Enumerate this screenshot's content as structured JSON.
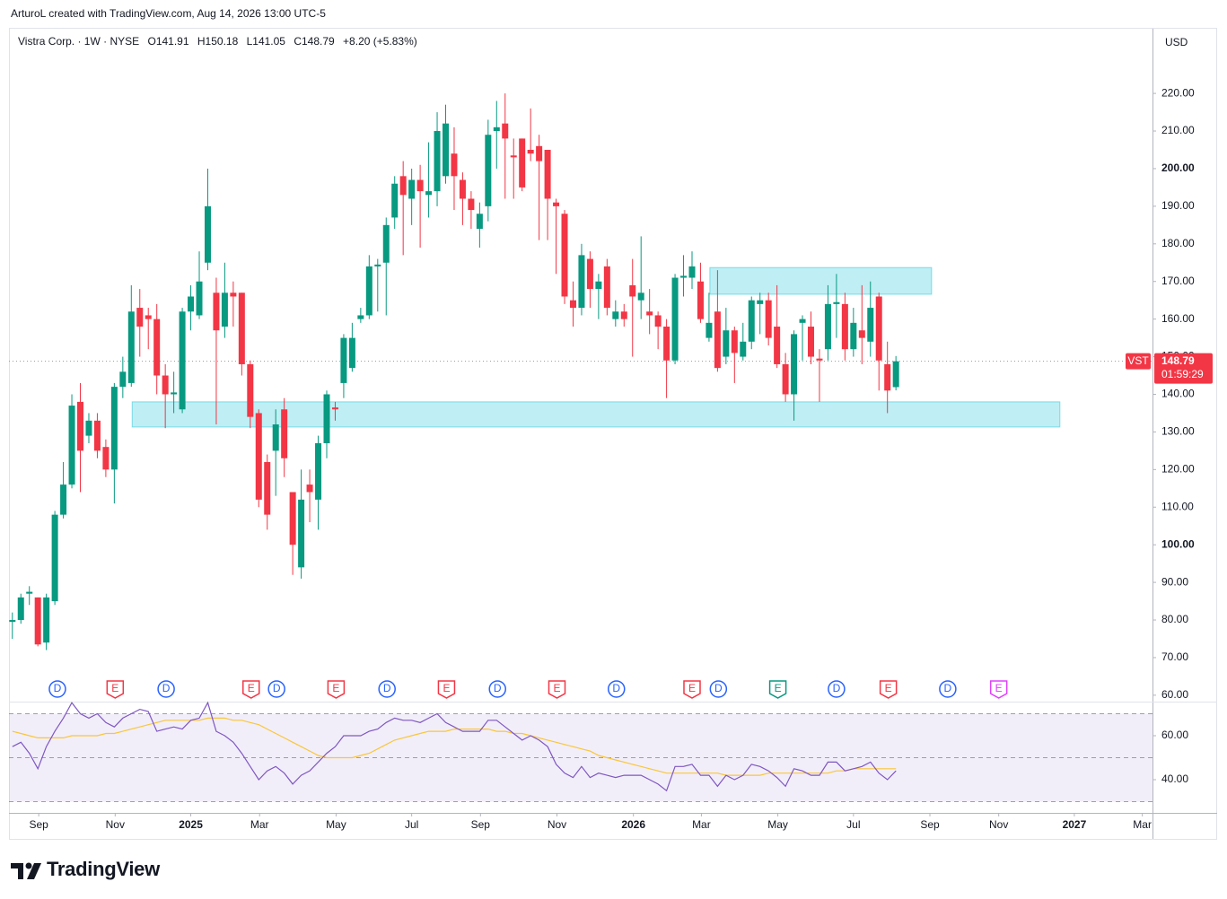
{
  "attribution": "ArturoL created with TradingView.com, Aug 14, 2026 13:00 UTC-5",
  "brand": "TradingView",
  "chart_data": {
    "type": "candlestick",
    "title": "Vistra Corp. · 1W · NYSE",
    "ohlc_legend": [
      "O141.91",
      "H150.18",
      "L141.05",
      "C148.79",
      "+8.20 (+5.83%)"
    ],
    "currency": "USD",
    "categories": [
      null,
      null,
      null,
      null,
      null,
      null,
      null,
      null,
      null,
      null,
      null,
      null,
      null,
      null,
      null,
      null,
      null,
      null,
      null,
      null,
      null,
      null,
      null,
      null,
      null,
      null,
      null,
      null,
      null,
      null,
      null,
      null,
      null,
      null,
      null,
      null,
      null,
      null,
      null,
      null,
      null,
      null,
      null,
      null,
      null,
      null,
      null,
      null,
      null,
      null,
      null,
      null,
      null,
      null,
      null,
      null,
      null,
      null,
      null,
      null,
      null,
      null,
      null,
      null,
      null,
      null,
      null,
      null,
      null,
      null,
      null,
      null,
      null,
      null,
      null,
      null,
      null,
      null,
      null,
      null,
      null,
      null,
      null,
      null,
      null,
      null,
      null,
      null,
      null,
      null,
      null,
      null,
      null,
      null,
      null,
      null,
      null,
      null,
      null,
      null,
      null,
      null,
      null,
      null,
      null
    ],
    "open": [
      79.5,
      80,
      87,
      86,
      74,
      85,
      108,
      116,
      138,
      129,
      133,
      126,
      120,
      142,
      143,
      163,
      161,
      160,
      145,
      140,
      136,
      162,
      161,
      175,
      167,
      158,
      167,
      167,
      148,
      135,
      122,
      125,
      136,
      114,
      94,
      116,
      112,
      127,
      136.5,
      143,
      147,
      160,
      161,
      174,
      175,
      187,
      198,
      192,
      197,
      193,
      194,
      198,
      204,
      197,
      192,
      184,
      190,
      210,
      212,
      203.5,
      208,
      205,
      206,
      205,
      191,
      188,
      165,
      163,
      176,
      168,
      174,
      160,
      162,
      169,
      165,
      162,
      161,
      158,
      149,
      171,
      171,
      170,
      155,
      162,
      150,
      157,
      150,
      154,
      164,
      165,
      158,
      148,
      140,
      159,
      158,
      149.5,
      152,
      164,
      164,
      152,
      157,
      154,
      166,
      148,
      141.91
    ],
    "high": [
      82,
      87,
      89,
      86,
      87,
      109,
      122,
      140,
      143,
      135,
      135,
      128,
      143,
      150,
      169,
      168,
      163,
      164,
      148,
      146,
      163,
      169,
      178,
      200,
      171,
      175,
      170,
      167,
      149,
      136,
      124,
      136,
      139,
      114,
      120,
      120,
      129,
      141,
      138,
      156,
      159,
      163,
      177,
      176,
      187,
      198,
      202,
      200,
      201,
      207,
      215,
      217,
      211,
      199,
      194,
      191,
      213,
      218,
      220,
      208,
      208,
      216,
      209,
      205,
      192,
      189,
      170,
      180,
      178,
      172,
      176,
      165,
      164,
      176,
      182,
      168,
      162,
      160,
      172,
      177,
      178,
      175,
      167,
      173,
      163,
      158,
      159,
      166,
      167,
      167,
      169,
      151,
      157,
      161,
      162,
      152,
      169,
      172,
      167,
      163,
      169,
      170,
      167,
      154,
      150.18
    ],
    "low": [
      75,
      79,
      84,
      73,
      72,
      84,
      107,
      115,
      114,
      127,
      123,
      118,
      111,
      139,
      142,
      150,
      152,
      140,
      131,
      135,
      135,
      157,
      160,
      173,
      132,
      155,
      158,
      145,
      131,
      110,
      104,
      113,
      118,
      92,
      91,
      106,
      104,
      123,
      133,
      139,
      146,
      159,
      160,
      162,
      161,
      184,
      177,
      185,
      179,
      187,
      190,
      196,
      189,
      185,
      184,
      179,
      186,
      200,
      192,
      192,
      194,
      202,
      181,
      181,
      172,
      164,
      158,
      161,
      163,
      160,
      161,
      158,
      158,
      150,
      160,
      156,
      152,
      139,
      148,
      166,
      168,
      159,
      154,
      146,
      148,
      143,
      149,
      152,
      156,
      153,
      147,
      138,
      133,
      149,
      148,
      138,
      149,
      155,
      149,
      150,
      148,
      150,
      141,
      135,
      141.05
    ],
    "close": [
      80,
      86,
      87.5,
      73.5,
      86,
      108,
      116,
      137,
      125,
      133,
      125,
      120,
      142,
      146,
      162,
      158,
      160,
      145,
      140,
      140.5,
      162,
      166,
      170,
      190,
      157,
      167,
      166,
      148,
      134,
      112,
      108,
      132,
      123,
      100,
      112,
      114,
      127,
      140,
      136,
      155,
      155,
      161,
      174,
      174.5,
      185,
      196,
      193,
      197,
      194,
      194,
      210,
      212,
      198,
      192,
      189,
      188,
      209,
      211,
      208,
      203,
      195,
      204,
      202,
      192,
      190,
      166,
      163,
      177,
      168,
      170,
      163,
      162,
      160,
      166,
      167,
      161,
      158,
      149,
      171,
      171.5,
      174,
      160,
      159,
      147,
      157,
      151,
      154,
      165,
      165,
      155,
      148,
      140,
      156,
      160,
      150,
      149,
      164,
      164.5,
      152,
      159,
      155,
      163,
      149,
      141,
      148.79
    ],
    "up_color": "#089981",
    "down_color": "#f23645",
    "xlim": [
      -0.4,
      134.2
    ],
    "xticks": [
      {
        "value": 3.1,
        "label": "Sep"
      },
      {
        "value": 12.1,
        "label": "Nov"
      },
      {
        "value": 21.0,
        "label": "2025"
      },
      {
        "value": 29.1,
        "label": "Mar"
      },
      {
        "value": 38.1,
        "label": "May"
      },
      {
        "value": 47.0,
        "label": "Jul"
      },
      {
        "value": 55.1,
        "label": "Sep"
      },
      {
        "value": 64.1,
        "label": "Nov"
      },
      {
        "value": 73.1,
        "label": "2026"
      },
      {
        "value": 81.1,
        "label": "Mar"
      },
      {
        "value": 90.1,
        "label": "May"
      },
      {
        "value": 99.0,
        "label": "Jul"
      },
      {
        "value": 108.0,
        "label": "Sep"
      },
      {
        "value": 116.1,
        "label": "Nov"
      },
      {
        "value": 125.0,
        "label": "2027"
      },
      {
        "value": 133.0,
        "label": "Mar"
      }
    ],
    "ylim": [
      58.3,
      237.2
    ],
    "yticks": [
      {
        "value": 60,
        "label": "60.00"
      },
      {
        "value": 70,
        "label": "70.00"
      },
      {
        "value": 80,
        "label": "80.00"
      },
      {
        "value": 90,
        "label": "90.00"
      },
      {
        "value": 100,
        "label": "100.00"
      },
      {
        "value": 110,
        "label": "110.00"
      },
      {
        "value": 120,
        "label": "120.00"
      },
      {
        "value": 130,
        "label": "130.00"
      },
      {
        "value": 140,
        "label": "140.00"
      },
      {
        "value": 150,
        "label": "150.00"
      },
      {
        "value": 160,
        "label": "160.00"
      },
      {
        "value": 170,
        "label": "170.00"
      },
      {
        "value": 180,
        "label": "180.00"
      },
      {
        "value": 190,
        "label": "190.00"
      },
      {
        "value": 200,
        "label": "200.00"
      },
      {
        "value": 210,
        "label": "210.00"
      },
      {
        "value": 220,
        "label": "220.00"
      }
    ],
    "symbol": "VST",
    "last_price": {
      "value": 148.79,
      "label": "148.79"
    },
    "countdown": "01:59:29",
    "zone_color": "#00bcd4",
    "zones": [
      {
        "xlim": [
          14.1,
          123.3
        ],
        "ylim": [
          131.3,
          138.0
        ]
      },
      {
        "xlim": [
          82.1,
          108.2
        ],
        "ylim": [
          166.6,
          173.7
        ]
      }
    ],
    "events": [
      {
        "x": 5.3,
        "label": "D",
        "color": "#2962ff"
      },
      {
        "x": 12.1,
        "label": "E",
        "color": "#f23645"
      },
      {
        "x": 18.1,
        "label": "D",
        "color": "#2962ff"
      },
      {
        "x": 28.1,
        "label": "E",
        "color": "#f23645"
      },
      {
        "x": 31.1,
        "label": "D",
        "color": "#2962ff"
      },
      {
        "x": 38.1,
        "label": "E",
        "color": "#f23645"
      },
      {
        "x": 44.1,
        "label": "D",
        "color": "#2962ff"
      },
      {
        "x": 51.1,
        "label": "E",
        "color": "#f23645"
      },
      {
        "x": 57.1,
        "label": "D",
        "color": "#2962ff"
      },
      {
        "x": 64.1,
        "label": "E",
        "color": "#f23645"
      },
      {
        "x": 71.1,
        "label": "D",
        "color": "#2962ff"
      },
      {
        "x": 80.0,
        "label": "E",
        "color": "#f23645"
      },
      {
        "x": 83.1,
        "label": "D",
        "color": "#2962ff"
      },
      {
        "x": 90.1,
        "label": "E",
        "color": "#089981"
      },
      {
        "x": 97.0,
        "label": "D",
        "color": "#2962ff"
      },
      {
        "x": 103.1,
        "label": "E",
        "color": "#f23645"
      },
      {
        "x": 110.1,
        "label": "D",
        "color": "#2962ff"
      },
      {
        "x": 116.1,
        "label": "E",
        "color": "#e040fb"
      }
    ],
    "rsi": {
      "ylim": [
        24.9,
        75.1
      ],
      "yticks": [
        {
          "value": 60,
          "label": "60.00"
        },
        {
          "value": 40,
          "label": "40.00"
        }
      ],
      "bands": [
        70,
        50,
        30
      ],
      "color": "#7e57c2",
      "values": [
        55,
        57,
        52,
        45,
        55,
        62,
        68,
        75,
        70,
        68,
        70,
        66,
        64,
        68,
        70,
        72,
        71,
        62,
        63,
        64,
        63,
        67,
        68,
        75,
        62,
        60,
        57,
        52,
        46,
        40,
        44,
        46,
        43,
        38,
        42,
        44,
        48,
        52,
        55,
        60,
        60,
        60,
        62,
        63,
        66,
        68,
        67,
        67,
        66,
        68,
        70,
        66,
        64,
        62,
        62,
        62,
        67,
        67,
        64,
        61,
        58,
        60,
        58,
        55,
        47,
        43,
        41,
        46,
        41,
        43,
        42,
        41,
        42,
        42,
        42,
        40,
        38,
        35,
        46,
        46,
        47,
        42,
        42,
        37,
        42,
        40,
        42,
        47,
        46,
        44,
        41,
        37,
        45,
        44,
        42,
        42,
        48,
        48,
        44,
        45,
        46,
        48,
        43,
        40,
        44
      ],
      "ma_color": "#f9c63a",
      "ma": [
        62,
        61,
        60,
        59,
        59,
        59,
        59,
        60,
        60,
        60,
        60,
        61,
        61,
        62,
        63,
        64,
        65,
        66,
        67,
        67,
        67,
        67,
        67,
        68,
        68,
        68,
        67,
        67,
        66,
        65,
        63,
        61,
        59,
        57,
        55,
        53,
        51,
        50,
        50,
        50,
        50,
        51,
        52,
        54,
        56,
        58,
        59,
        60,
        61,
        62,
        62,
        62,
        63,
        63,
        63,
        63,
        63,
        62,
        62,
        61,
        61,
        60,
        59,
        58,
        57,
        56,
        55,
        54,
        53,
        51,
        50,
        49,
        48,
        47,
        46,
        45,
        44,
        43,
        43,
        43,
        43,
        43,
        43,
        43,
        42,
        42,
        42,
        42,
        42,
        43,
        43,
        43,
        43,
        43,
        43,
        43,
        43,
        44,
        44,
        45,
        45,
        45,
        45,
        45,
        45
      ]
    }
  }
}
